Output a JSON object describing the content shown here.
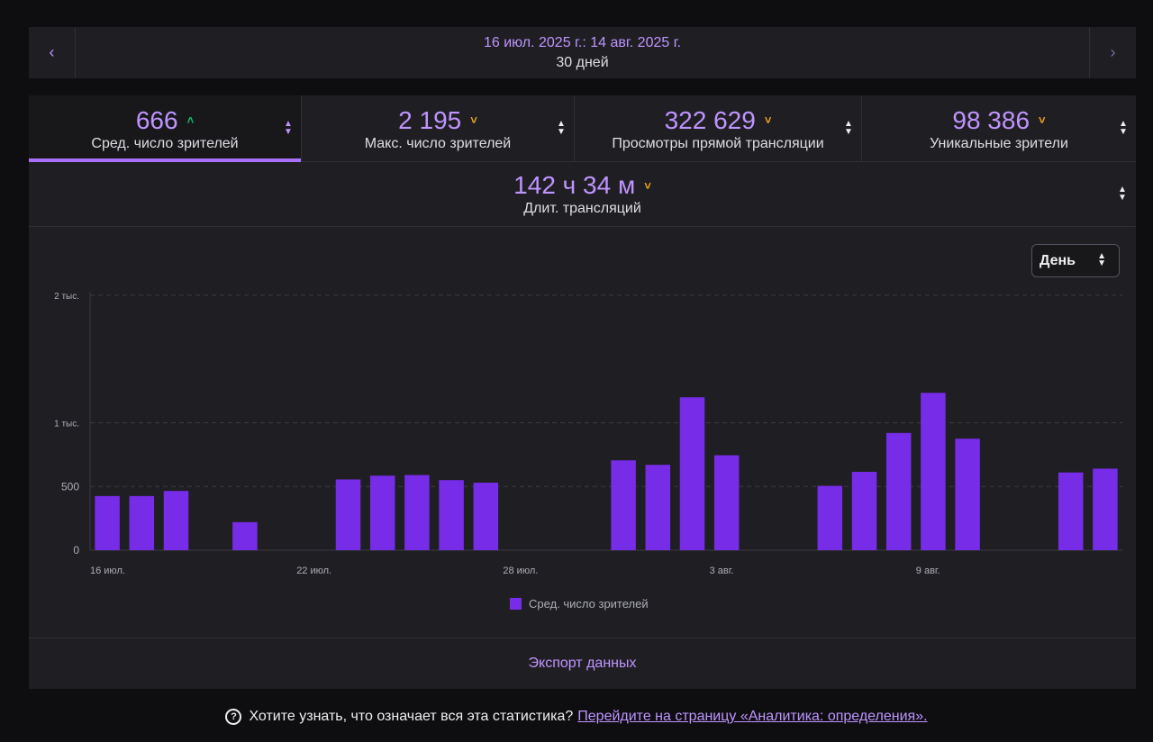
{
  "date_nav": {
    "prev_icon": "chevron-left-icon",
    "next_icon": "chevron-right-icon",
    "range": "16 июл. 2025 г.: 14 авг. 2025 г.",
    "days": "30 дней"
  },
  "metrics": [
    {
      "value": "666",
      "label": "Сред. число зрителей",
      "trend": "up",
      "active": true
    },
    {
      "value": "2 195",
      "label": "Макс. число зрителей",
      "trend": "down",
      "active": false
    },
    {
      "value": "322 629",
      "label": "Просмотры прямой трансляции",
      "trend": "down",
      "active": false
    },
    {
      "value": "98 386",
      "label": "Уникальные зрители",
      "trend": "down",
      "active": false
    },
    {
      "value": "142 ч 34 м",
      "label": "Длит. трансляций",
      "trend": "down",
      "active": false
    }
  ],
  "granularity_select": {
    "value": "День"
  },
  "chart_data": {
    "type": "bar",
    "ylim": [
      0,
      2000
    ],
    "y_ticks": [
      {
        "value": 0,
        "label": "0"
      },
      {
        "value": 500,
        "label": "500"
      },
      {
        "value": 1000,
        "label": "1 тыс."
      },
      {
        "value": 2000,
        "label": "2 тыс."
      }
    ],
    "grid": true,
    "categories": [
      "16 июл.",
      "17 июл.",
      "18 июл.",
      "19 июл.",
      "20 июл.",
      "21 июл.",
      "22 июл.",
      "23 июл.",
      "24 июл.",
      "25 июл.",
      "26 июл.",
      "27 июл.",
      "28 июл.",
      "29 июл.",
      "30 июл.",
      "31 июл.",
      "1 авг.",
      "2 авг.",
      "3 авг.",
      "4 авг.",
      "5 авг.",
      "6 авг.",
      "7 авг.",
      "8 авг.",
      "9 авг.",
      "10 авг.",
      "11 авг.",
      "12 авг.",
      "13 авг.",
      "14 авг."
    ],
    "x_tick_labels": [
      "16 июл.",
      "22 июл.",
      "28 июл.",
      "3 авг.",
      "9 авг."
    ],
    "series": [
      {
        "name": "Сред. число зрителей",
        "color": "#772ce8",
        "values": [
          425,
          425,
          465,
          0,
          220,
          0,
          0,
          555,
          585,
          590,
          550,
          530,
          0,
          0,
          0,
          705,
          670,
          1200,
          745,
          0,
          0,
          505,
          615,
          920,
          1235,
          875,
          0,
          0,
          610,
          640
        ]
      }
    ],
    "legend_position": "bottom"
  },
  "export": {
    "label": "Экспорт данных"
  },
  "footer": {
    "help_icon": "question-circle-icon",
    "text": "Хотите узнать, что означает вся эта статистика?",
    "link": "Перейдите на страницу «Аналитика: определения»."
  }
}
